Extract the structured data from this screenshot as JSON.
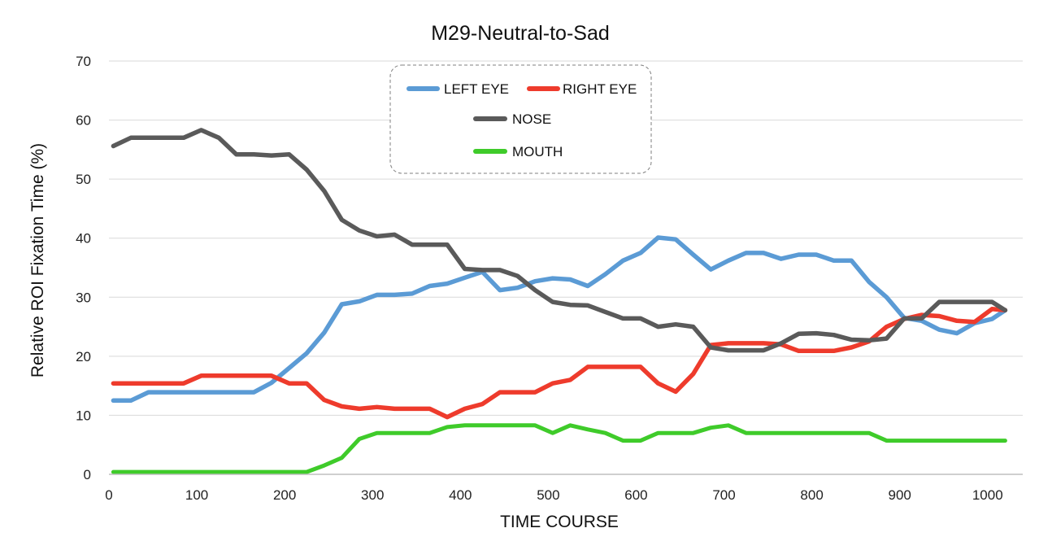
{
  "chart_data": {
    "type": "line",
    "title": "M29-Neutral-to-Sad",
    "xlabel": "TIME  COURSE",
    "ylabel": "Relative  ROI  Fixation  Time  (%)",
    "xlim": [
      0,
      1040
    ],
    "ylim": [
      0,
      70
    ],
    "xticks": [
      0,
      100,
      200,
      300,
      400,
      500,
      600,
      700,
      800,
      900,
      1000
    ],
    "yticks": [
      0,
      10,
      20,
      30,
      40,
      50,
      60,
      70
    ],
    "grid": true,
    "legend_position": "top-center",
    "x": [
      5,
      25,
      45,
      65,
      85,
      105,
      125,
      145,
      165,
      185,
      205,
      225,
      245,
      265,
      285,
      305,
      325,
      345,
      365,
      385,
      405,
      425,
      445,
      465,
      485,
      505,
      525,
      545,
      565,
      585,
      605,
      625,
      645,
      665,
      685,
      705,
      725,
      745,
      765,
      785,
      805,
      825,
      845,
      865,
      885,
      905,
      925,
      945,
      965,
      985,
      1005,
      1020
    ],
    "series": [
      {
        "name": "LEFT EYE",
        "color": "#5b9bd5",
        "values": [
          12.5,
          12.5,
          13.9,
          13.9,
          13.9,
          13.9,
          13.9,
          13.9,
          13.9,
          15.5,
          18.0,
          20.5,
          24.0,
          28.8,
          29.3,
          30.4,
          30.4,
          30.6,
          31.9,
          32.3,
          33.3,
          34.3,
          31.2,
          31.6,
          32.7,
          33.2,
          33.0,
          31.9,
          33.9,
          36.2,
          37.5,
          40.1,
          39.8,
          37.2,
          34.7,
          36.2,
          37.5,
          37.5,
          36.5,
          37.2,
          37.2,
          36.2,
          36.2,
          32.6,
          30.0,
          26.5,
          26.0,
          24.5,
          23.9,
          25.6,
          26.3,
          27.8
        ]
      },
      {
        "name": "RIGHT EYE",
        "color": "#ee3b2c",
        "values": [
          15.4,
          15.4,
          15.4,
          15.4,
          15.4,
          16.7,
          16.7,
          16.7,
          16.7,
          16.7,
          15.4,
          15.4,
          12.6,
          11.5,
          11.1,
          11.4,
          11.1,
          11.1,
          11.1,
          9.7,
          11.1,
          11.9,
          13.9,
          13.9,
          13.9,
          15.4,
          16.0,
          18.2,
          18.2,
          18.2,
          18.2,
          15.4,
          14.0,
          17.0,
          21.9,
          22.2,
          22.2,
          22.2,
          22.0,
          20.9,
          20.9,
          20.9,
          21.5,
          22.5,
          25.0,
          26.3,
          27.0,
          26.8,
          26.0,
          25.8,
          28.0,
          27.8
        ]
      },
      {
        "name": "NOSE",
        "color": "#5a5a5a",
        "values": [
          55.6,
          57.0,
          57.0,
          57.0,
          57.0,
          58.3,
          57.0,
          54.2,
          54.2,
          54.0,
          54.2,
          51.6,
          48.0,
          43.1,
          41.3,
          40.3,
          40.6,
          38.9,
          38.9,
          38.9,
          34.8,
          34.6,
          34.6,
          33.6,
          31.2,
          29.2,
          28.7,
          28.6,
          27.5,
          26.4,
          26.4,
          25.0,
          25.4,
          25.0,
          21.5,
          21.0,
          21.0,
          21.0,
          22.2,
          23.8,
          23.9,
          23.6,
          22.8,
          22.7,
          23.0,
          26.4,
          26.4,
          29.2,
          29.2,
          29.2,
          29.2,
          27.8
        ]
      },
      {
        "name": "MOUTH",
        "color": "#3fcb2a",
        "values": [
          0.4,
          0.4,
          0.4,
          0.4,
          0.4,
          0.4,
          0.4,
          0.4,
          0.4,
          0.4,
          0.4,
          0.4,
          1.5,
          2.8,
          6.0,
          7.0,
          7.0,
          7.0,
          7.0,
          8.0,
          8.3,
          8.3,
          8.3,
          8.3,
          8.3,
          7.0,
          8.3,
          7.6,
          7.0,
          5.7,
          5.7,
          7.0,
          7.0,
          7.0,
          7.9,
          8.3,
          7.0,
          7.0,
          7.0,
          7.0,
          7.0,
          7.0,
          7.0,
          7.0,
          5.7,
          5.7,
          5.7,
          5.7,
          5.7,
          5.7,
          5.7,
          5.7
        ]
      }
    ]
  },
  "colors": {
    "grid": "#d9d9d9",
    "axis": "#bfbfbf",
    "legend_border": "#7f7f7f"
  }
}
